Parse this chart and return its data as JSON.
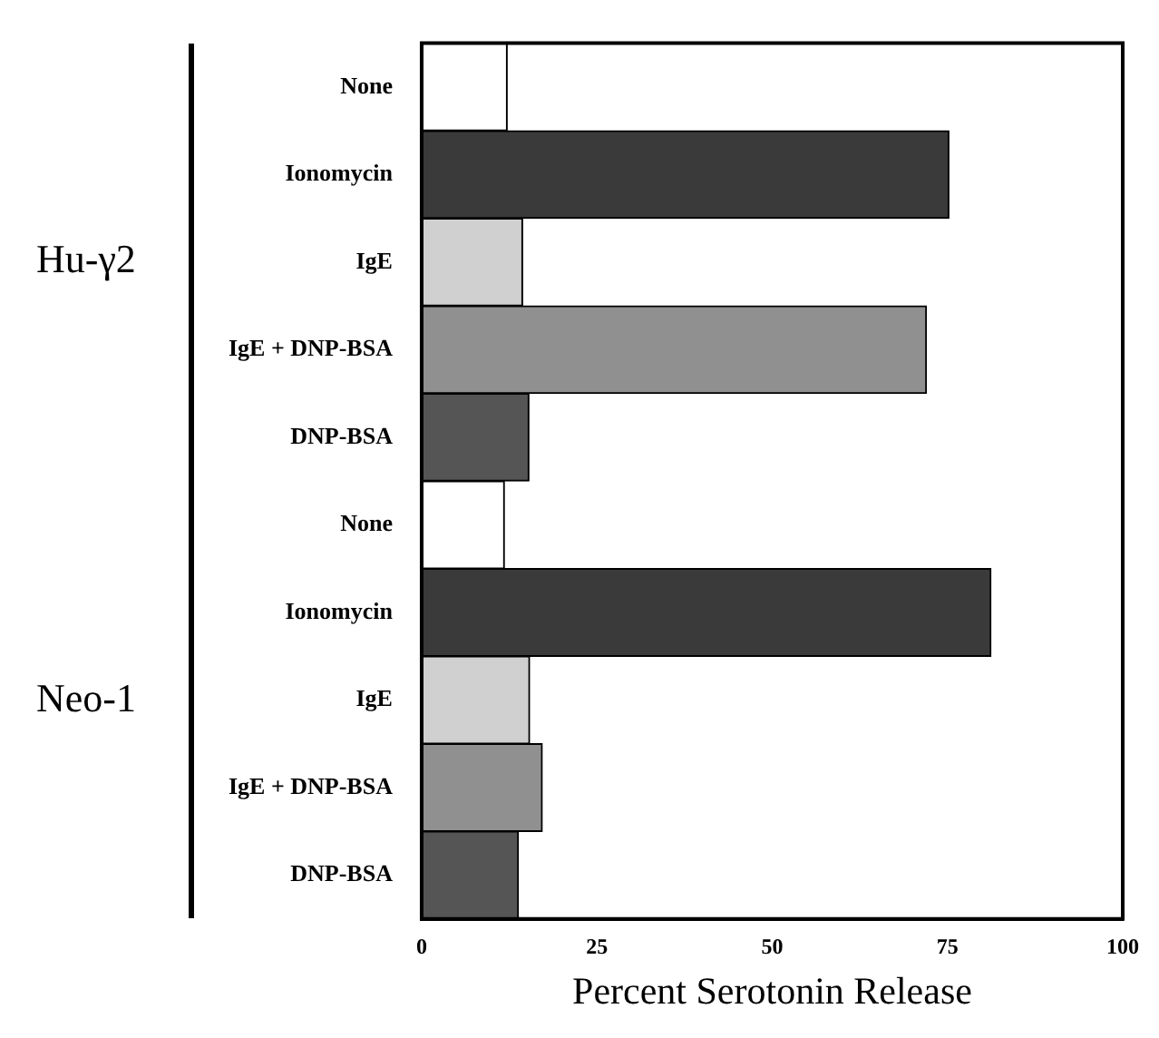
{
  "chart_data": {
    "type": "bar",
    "orientation": "horizontal",
    "xlabel": "Percent Serotonin Release",
    "categories": [
      "None",
      "Ionomycin",
      "IgE",
      "IgE + DNP-BSA",
      "DNP-BSA",
      "None",
      "Ionomycin",
      "IgE",
      "IgE + DNP-BSA",
      "DNP-BSA"
    ],
    "values": [
      12.2,
      75.2,
      14.4,
      72,
      15.3,
      11.8,
      81.2,
      15.4,
      17.2,
      13.8
    ],
    "colors": [
      "#ffffff",
      "#3a3a3a",
      "#d0d0d0",
      "#909090",
      "#555555",
      "#ffffff",
      "#3a3a3a",
      "#d0d0d0",
      "#909090",
      "#555555"
    ],
    "xlim": [
      0,
      100
    ],
    "xticks": [
      0,
      25,
      50,
      75,
      100
    ],
    "annotations": [
      "Hu-γ2",
      "Neo-1"
    ]
  }
}
